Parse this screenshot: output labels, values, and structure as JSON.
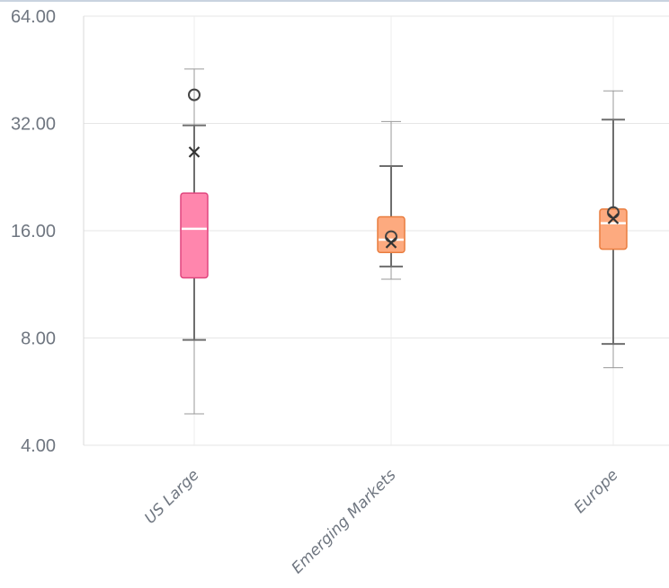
{
  "chart_data": {
    "type": "boxplot",
    "y_scale": "log2",
    "ylim": [
      4,
      64
    ],
    "y_ticks": [
      {
        "value": 64,
        "label": "64.00"
      },
      {
        "value": 32,
        "label": "32.00"
      },
      {
        "value": 16,
        "label": "16.00"
      },
      {
        "value": 8,
        "label": "8.00"
      },
      {
        "value": 4,
        "label": "4.00"
      }
    ],
    "grid": true,
    "categories": [
      "US Large",
      "Emerging Markets",
      "Europe"
    ],
    "boxes": [
      {
        "category": "US Large",
        "color": "#ff86ad",
        "border_color": "#e0457e",
        "whisker_low": 7.9,
        "q1": 11.8,
        "median": 16.2,
        "q3": 20.4,
        "whisker_high": 31.6,
        "outer_low": 4.9,
        "outer_high": 45.5,
        "mean": 26.6,
        "outliers": [
          38.5
        ]
      },
      {
        "category": "Emerging Markets",
        "color": "#fdaa7f",
        "border_color": "#e97d3f",
        "whisker_low": 12.7,
        "q1": 13.9,
        "median": 15.1,
        "q3": 17.5,
        "whisker_high": 24.3,
        "outer_low": 11.7,
        "outer_high": 32.4,
        "mean": 14.8,
        "outliers": [
          15.4
        ]
      },
      {
        "category": "Europe",
        "color": "#fdaa7f",
        "border_color": "#e97d3f",
        "whisker_low": 7.7,
        "q1": 14.2,
        "median": 16.8,
        "q3": 18.4,
        "whisker_high": 32.8,
        "outer_low": 6.6,
        "outer_high": 39.5,
        "mean": 17.3,
        "outliers": [
          18.0
        ]
      }
    ],
    "title": "",
    "xlabel": "",
    "ylabel": ""
  }
}
